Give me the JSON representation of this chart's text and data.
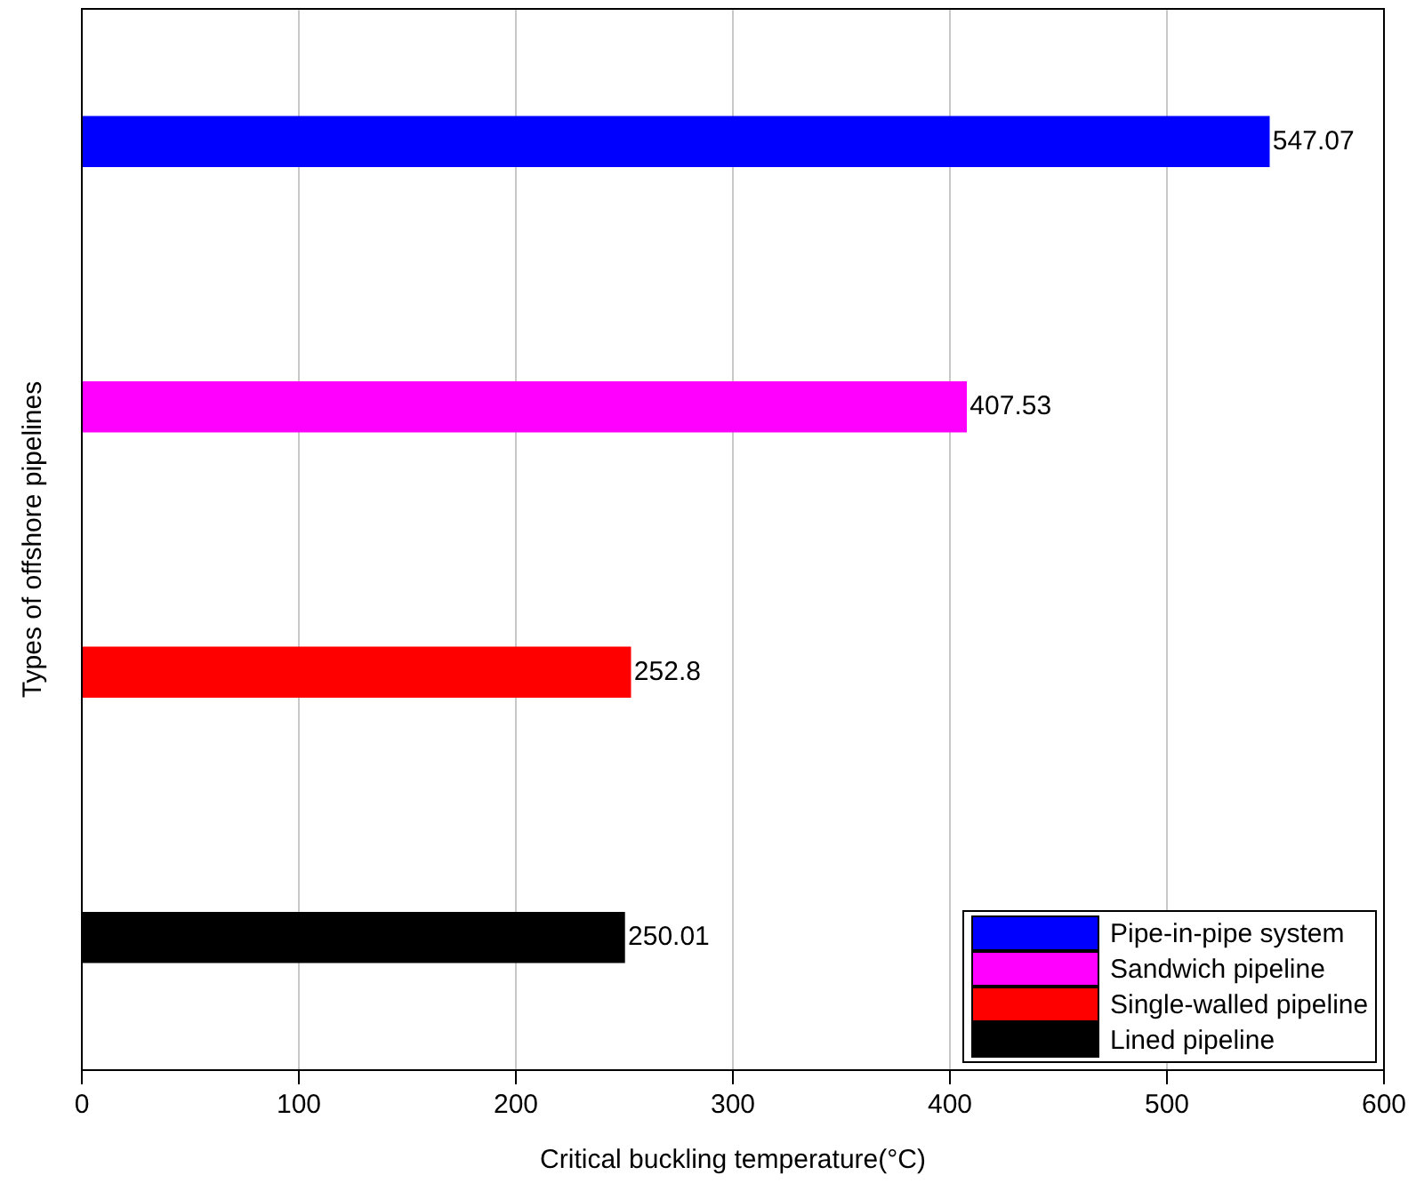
{
  "chart_data": {
    "type": "bar",
    "orientation": "horizontal",
    "xlabel": "Critical buckling temperature(°C)",
    "ylabel": "Types of offshore pipelines",
    "categories": [
      null,
      null,
      null,
      null
    ],
    "series": [
      {
        "name": "Pipe-in-pipe system",
        "color": "#0000ff",
        "values": [
          547.07,
          null,
          null,
          null
        ]
      },
      {
        "name": "Sandwich pipeline",
        "color": "#ff00ff",
        "values": [
          null,
          407.53,
          null,
          null
        ]
      },
      {
        "name": "Single-walled pipeline",
        "color": "#ff0000",
        "values": [
          null,
          null,
          252.8,
          null
        ]
      },
      {
        "name": "Lined pipeline",
        "color": "#000000",
        "values": [
          null,
          null,
          null,
          250.01
        ]
      }
    ],
    "xlim": [
      0,
      600
    ],
    "xticks": [
      0,
      100,
      200,
      300,
      400,
      500,
      600
    ],
    "grid": "x",
    "legend": "bottom right",
    "data_labels": true,
    "tick_labels": "x"
  }
}
